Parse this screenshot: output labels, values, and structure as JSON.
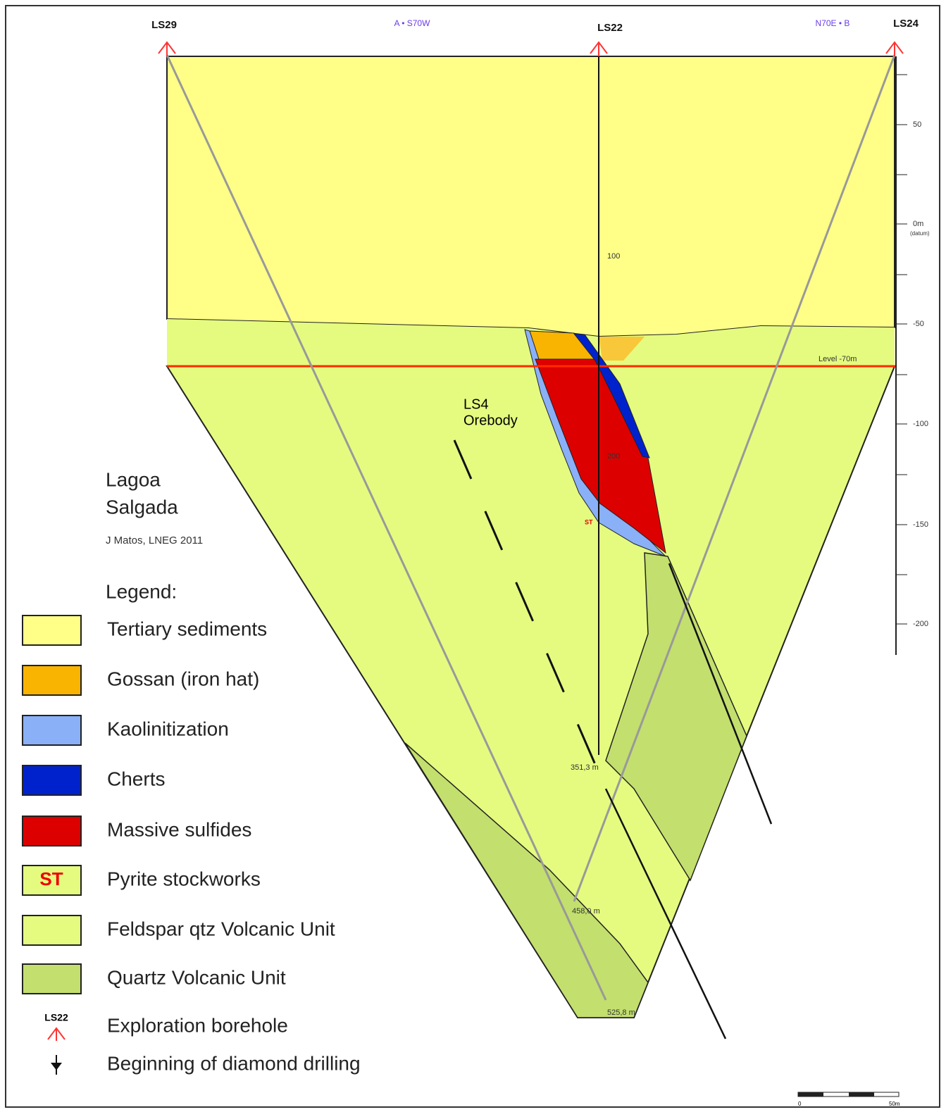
{
  "boreholes": [
    "LS29",
    "LS22",
    "LS24"
  ],
  "directions": [
    "A • S70W",
    "N70E • B"
  ],
  "elevation_scale": [
    "50",
    "0m",
    "(datum)",
    "-50",
    "-100",
    "-150",
    "-200"
  ],
  "level_label": "Level -70m",
  "depth_labels": [
    "100",
    "200",
    "351,3 m",
    "458,0 m",
    "525,8 m"
  ],
  "orebody_label": [
    "LS4",
    "Orebody"
  ],
  "stockwork_label": "ST",
  "title": [
    "Lagoa",
    "Salgada"
  ],
  "credit": "J Matos, LNEG 2011",
  "legend": {
    "title": "Legend:",
    "items": [
      {
        "label": "Tertiary sediments"
      },
      {
        "label": "Gossan (iron hat)"
      },
      {
        "label": "Kaolinitization"
      },
      {
        "label": "Cherts"
      },
      {
        "label": "Massive sulfides"
      },
      {
        "label": "Pyrite stockworks",
        "swatch": "ST"
      },
      {
        "label": "Feldspar qtz Volcanic Unit"
      },
      {
        "label": "Quartz Volcanic Unit"
      },
      {
        "label": "Exploration borehole",
        "swatch": "LS22"
      },
      {
        "label": "Beginning of diamond drilling"
      }
    ]
  },
  "scale_bar": [
    "0",
    "50m"
  ]
}
